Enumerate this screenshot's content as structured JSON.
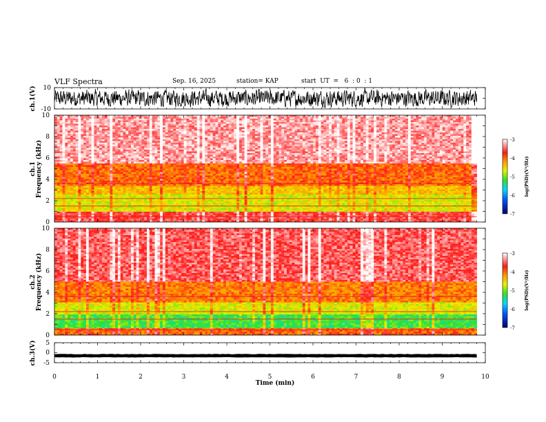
{
  "header": {
    "title": "VLF Spectra",
    "date": "Sep. 16, 2025",
    "station": "station= KAP",
    "start": "start  UT  =   6  : 0  : 1"
  },
  "colors": {
    "spectrum_low": "#000080",
    "spectrum_mid_blue": "#0060ff",
    "spectrum_cyan": "#00d8ff",
    "spectrum_green": "#30e030",
    "spectrum_yellow": "#e8f000",
    "spectrum_orange": "#ff9a00",
    "spectrum_red": "#ff1a1a",
    "spectrum_high": "#ffffff"
  },
  "chart_data": [
    {
      "type": "line",
      "title": "ch.1(V)",
      "ylabel": "ch.1(V)",
      "ylim": [
        -10,
        10
      ],
      "yticks": [
        "10",
        "-10"
      ],
      "xlim": [
        0,
        10
      ],
      "description_series": "dense black waveform, amplitude ~ ±7 V",
      "amplitude": 7
    },
    {
      "type": "heatmap",
      "title": "ch.1",
      "ylabel": "Frequency (kHz)",
      "channel": "ch.1",
      "ylim": [
        0,
        10
      ],
      "yticks": [
        "0",
        "2",
        "4",
        "6",
        "8",
        "10"
      ],
      "xlim": [
        0,
        9.8
      ],
      "colorbar": {
        "label": "log(PSD)(V²/Hz)",
        "range": [
          -7,
          -3
        ],
        "ticks": [
          "-3",
          "-4",
          "-5",
          "-6",
          "-7"
        ]
      },
      "bands_khz": [
        {
          "from": 0,
          "to": 1.0,
          "level": -3.6
        },
        {
          "from": 1.0,
          "to": 2.6,
          "level": -4.7
        },
        {
          "from": 2.6,
          "to": 3.4,
          "level": -4.4
        },
        {
          "from": 3.4,
          "to": 5.5,
          "level": -4.0
        },
        {
          "from": 5.5,
          "to": 10,
          "level": -3.3
        }
      ]
    },
    {
      "type": "heatmap",
      "title": "ch.2",
      "ylabel": "Frequency (kHz)",
      "channel": "ch.2",
      "ylim": [
        0,
        10
      ],
      "yticks": [
        "0",
        "2",
        "4",
        "6",
        "8",
        "10"
      ],
      "xlim": [
        0,
        9.8
      ],
      "colorbar": {
        "label": "log(PSD)(V²/Hz)",
        "range": [
          -7,
          -3
        ],
        "ticks": [
          "-3",
          "-4",
          "-5",
          "-6",
          "-7"
        ]
      },
      "bands_khz": [
        {
          "from": 0,
          "to": 0.6,
          "level": -4.0
        },
        {
          "from": 0.6,
          "to": 1.9,
          "level": -5.2
        },
        {
          "from": 1.9,
          "to": 3.0,
          "level": -4.7
        },
        {
          "from": 3.0,
          "to": 5.0,
          "level": -4.1
        },
        {
          "from": 5.0,
          "to": 10,
          "level": -3.5
        }
      ]
    },
    {
      "type": "line",
      "title": "ch.3(V)",
      "ylabel": "ch.3(V)",
      "ylim": [
        -5,
        5
      ],
      "yticks": [
        "5",
        "0",
        "-5"
      ],
      "xlim": [
        0,
        10
      ],
      "offset": -1.5,
      "amplitude": 0.6,
      "xlabel": "Time (min)",
      "xticks": [
        "0",
        "1",
        "2",
        "3",
        "4",
        "5",
        "6",
        "7",
        "8",
        "9",
        "10"
      ]
    }
  ]
}
